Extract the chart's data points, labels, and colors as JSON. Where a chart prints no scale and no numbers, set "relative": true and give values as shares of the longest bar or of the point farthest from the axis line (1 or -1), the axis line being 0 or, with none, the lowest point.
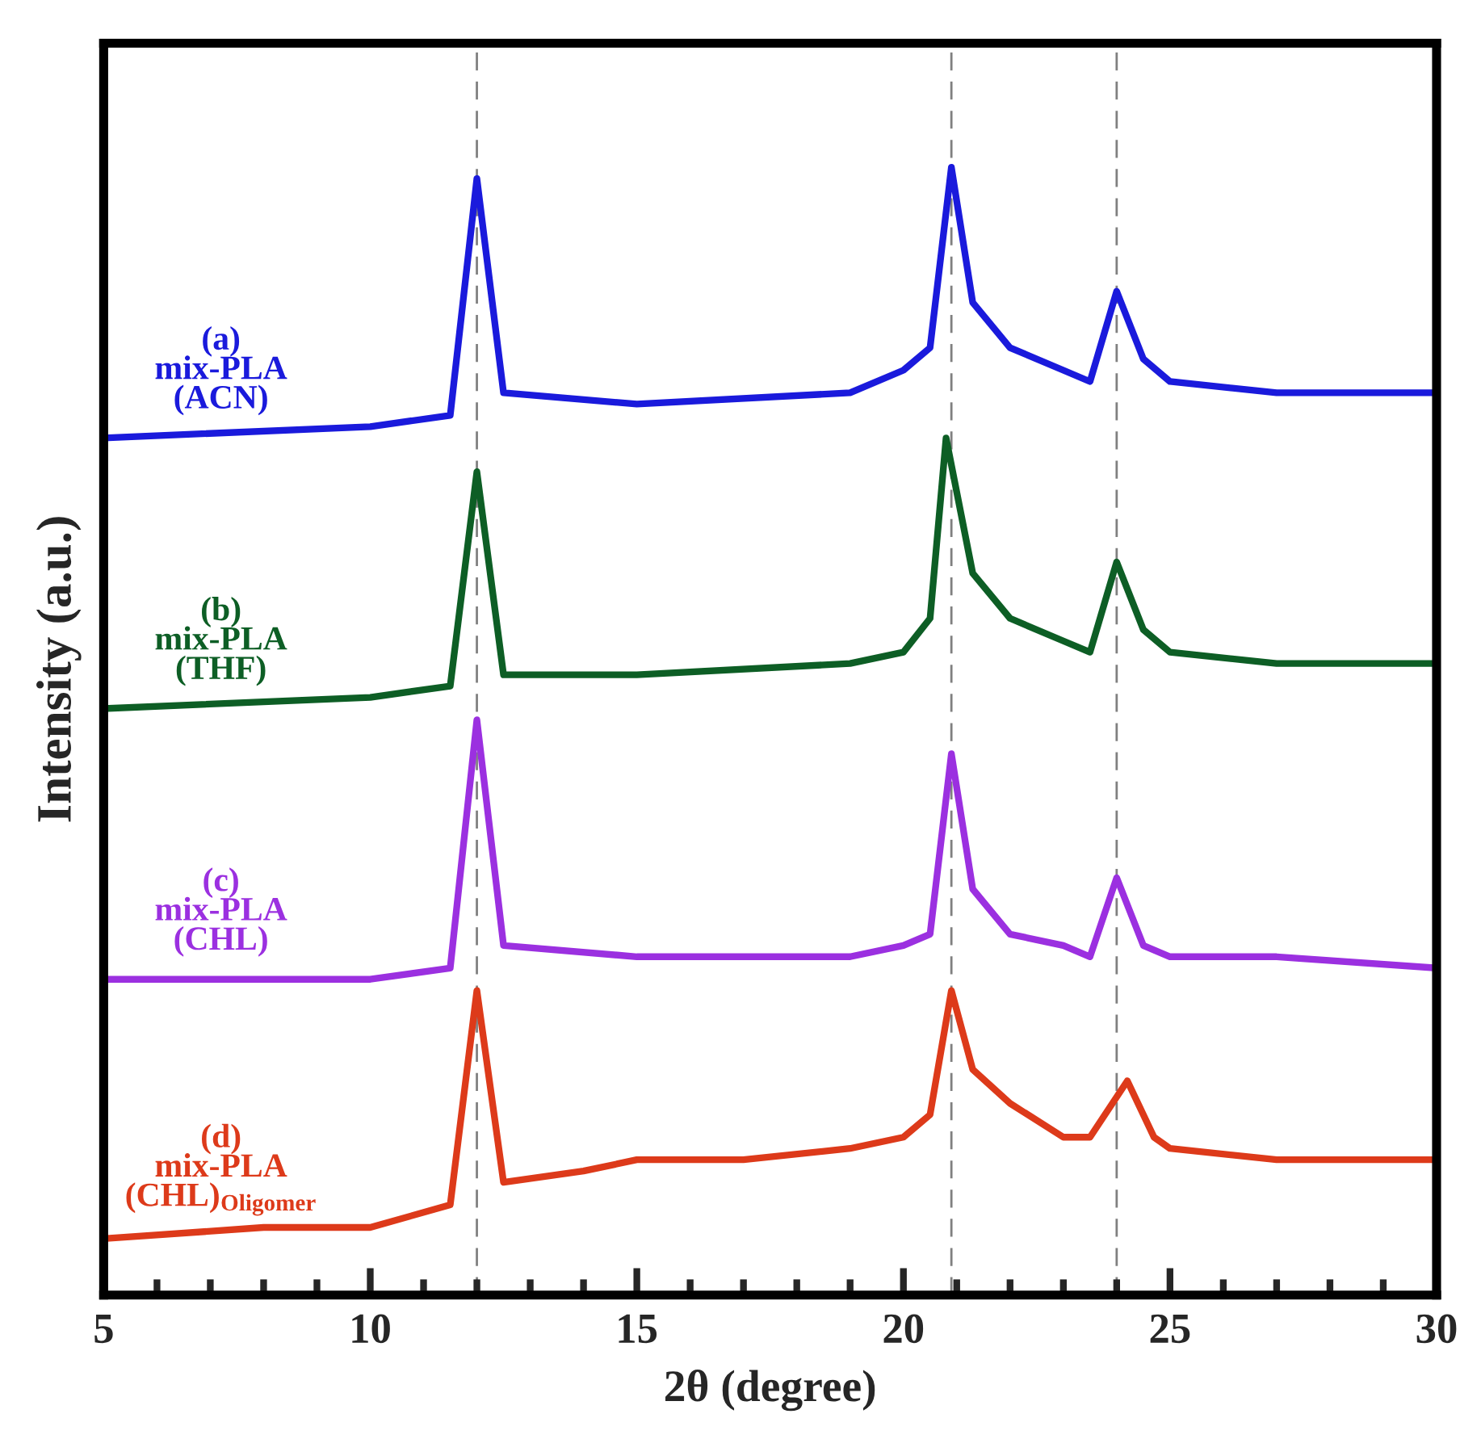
{
  "chart_data": {
    "type": "line",
    "relative": true,
    "xlabel": "2θ (degree)",
    "ylabel": "Intensity (a.u.)",
    "xlim": [
      5,
      30
    ],
    "xticks": [
      5,
      {
        "value": 6,
        "label": null
      },
      {
        "value": 7,
        "label": null
      },
      {
        "value": 8,
        "label": null
      },
      {
        "value": 9,
        "label": null
      },
      10,
      {
        "value": 11,
        "label": null
      },
      {
        "value": 12,
        "label": null
      },
      {
        "value": 13,
        "label": null
      },
      {
        "value": 14,
        "label": null
      },
      15,
      {
        "value": 16,
        "label": null
      },
      {
        "value": 17,
        "label": null
      },
      {
        "value": 18,
        "label": null
      },
      {
        "value": 19,
        "label": null
      },
      20,
      {
        "value": 21,
        "label": null
      },
      {
        "value": 22,
        "label": null
      },
      {
        "value": 23,
        "label": null
      },
      {
        "value": 24,
        "label": null
      },
      25,
      {
        "value": 26,
        "label": null
      },
      {
        "value": 27,
        "label": null
      },
      {
        "value": 28,
        "label": null
      },
      {
        "value": 29,
        "label": null
      },
      30
    ],
    "line_style": "solid",
    "marker": "none",
    "grid": false,
    "legend": false,
    "series": [
      {
        "name": "(a)\nmix-PLA\n(ACN)",
        "color": "#1a1adc",
        "x": [
          5,
          10,
          11.5,
          12,
          12.5,
          15,
          19,
          20,
          20.5,
          20.9,
          21.3,
          22,
          23,
          23.5,
          24,
          24.5,
          25,
          27,
          30
        ],
        "values": [
          0.76,
          0.77,
          0.78,
          0.99,
          0.8,
          0.79,
          0.8,
          0.82,
          0.84,
          1.0,
          0.88,
          0.84,
          0.82,
          0.81,
          0.89,
          0.83,
          0.81,
          0.8,
          0.8
        ]
      },
      {
        "name": "(b)\nmix-PLA\n(THF)",
        "color": "#0d5e25",
        "x": [
          5,
          10,
          11.5,
          12,
          12.5,
          15,
          19,
          20,
          20.5,
          20.8,
          21.3,
          22,
          23,
          23.5,
          24,
          24.5,
          25,
          27,
          30
        ],
        "values": [
          0.52,
          0.53,
          0.54,
          0.73,
          0.55,
          0.55,
          0.56,
          0.57,
          0.6,
          0.76,
          0.64,
          0.6,
          0.58,
          0.57,
          0.65,
          0.59,
          0.57,
          0.56,
          0.56
        ]
      },
      {
        "name": "(c)\nmix-PLA\n(CHL)",
        "color": "#9b30e0",
        "x": [
          5,
          10,
          11.5,
          12,
          12.5,
          15,
          19,
          20,
          20.5,
          20.9,
          21.3,
          22,
          23,
          23.5,
          24,
          24.5,
          25,
          27,
          30
        ],
        "values": [
          0.28,
          0.28,
          0.29,
          0.51,
          0.31,
          0.3,
          0.3,
          0.31,
          0.32,
          0.48,
          0.36,
          0.32,
          0.31,
          0.3,
          0.37,
          0.31,
          0.3,
          0.3,
          0.29
        ]
      },
      {
        "name": "(d)\nmix-PLA\n(CHL)$_{Oligomer}$",
        "color": "#dd3a1a",
        "x": [
          5,
          8,
          10,
          11.5,
          12,
          12.5,
          14,
          15,
          17,
          19,
          20,
          20.5,
          20.9,
          21.3,
          22,
          23,
          23.5,
          24.2,
          24.7,
          25,
          27,
          30
        ],
        "values": [
          0.05,
          0.06,
          0.06,
          0.08,
          0.27,
          0.1,
          0.11,
          0.12,
          0.12,
          0.13,
          0.14,
          0.16,
          0.27,
          0.2,
          0.17,
          0.14,
          0.14,
          0.19,
          0.14,
          0.13,
          0.12,
          0.12
        ]
      }
    ],
    "ref_lines": [
      {
        "axis": "x",
        "value": 12,
        "color": "#808080",
        "line_style": "dashed"
      },
      {
        "axis": "x",
        "value": 20.9,
        "color": "#808080",
        "line_style": "dashed"
      },
      {
        "axis": "x",
        "value": 24,
        "color": "#808080",
        "line_style": "dashed"
      }
    ]
  }
}
